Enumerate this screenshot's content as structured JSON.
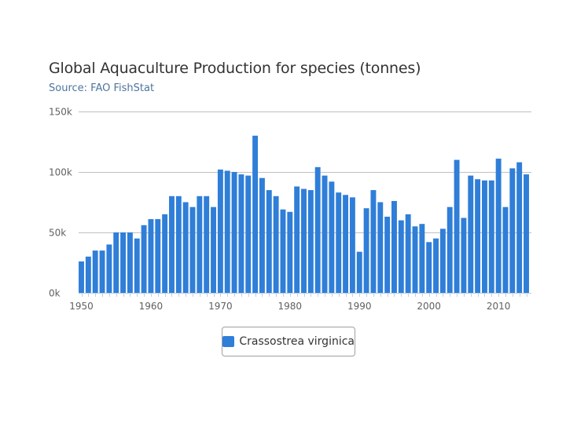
{
  "colors": {
    "series": "#2f7ed8",
    "grid": "#c0c0c0",
    "axis": "#c0d0e0"
  },
  "chart_data": {
    "type": "bar",
    "title": "Global Aquaculture Production for species (tonnes)",
    "subtitle": "Source: FAO FishStat",
    "xlabel": "",
    "ylabel": "",
    "x_start": 1950,
    "x_end": 2014,
    "x_ticks": [
      "1950",
      "1960",
      "1970",
      "1980",
      "1990",
      "2000",
      "2010"
    ],
    "y_ticks": [
      "0k",
      "50k",
      "100k",
      "150k"
    ],
    "ylim": [
      0,
      150000
    ],
    "legend_position": "bottom-center",
    "series": [
      {
        "name": "Crassostrea virginica",
        "values": [
          26000,
          30000,
          35000,
          35000,
          40000,
          50000,
          50000,
          50000,
          45000,
          56000,
          61000,
          61000,
          65000,
          80000,
          80000,
          75000,
          71000,
          80000,
          80000,
          71000,
          102000,
          101000,
          100000,
          98000,
          97000,
          130000,
          95000,
          85000,
          80000,
          69000,
          67000,
          88000,
          86000,
          85000,
          104000,
          97000,
          92000,
          83000,
          81000,
          79000,
          34000,
          70000,
          85000,
          75000,
          63000,
          76000,
          60000,
          65000,
          55000,
          57000,
          42000,
          45000,
          53000,
          71000,
          110000,
          62000,
          97000,
          94000,
          93000,
          93000,
          111000,
          71000,
          103000,
          108000,
          98000
        ]
      }
    ]
  }
}
